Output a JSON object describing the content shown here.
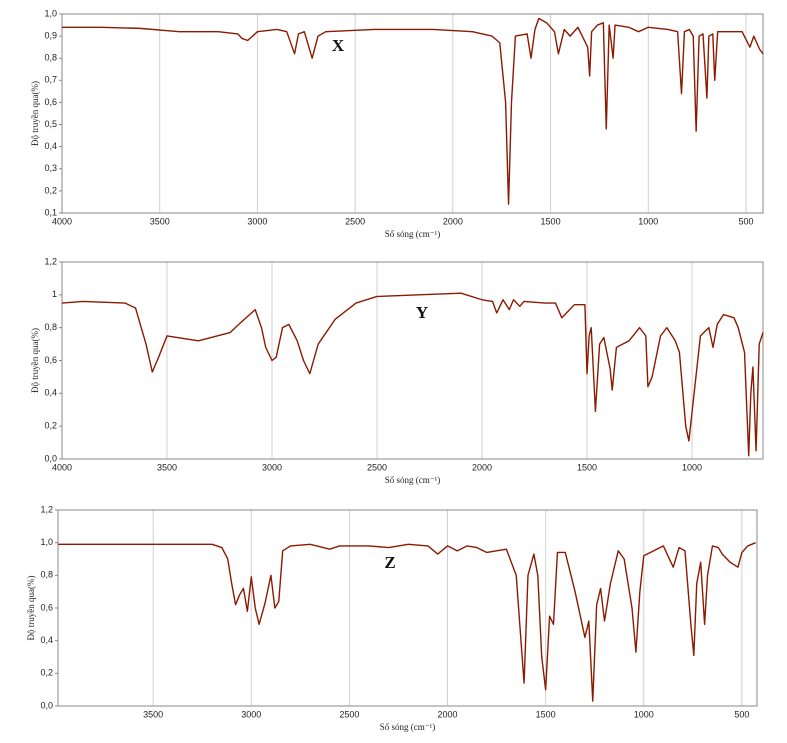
{
  "chart_data": [
    {
      "type": "line",
      "annotation": "X",
      "xlabel": "Số sóng (cm⁻¹)",
      "ylabel": "Độ truyền qua(%)",
      "grid": "x",
      "xlim": [
        4000,
        413
      ],
      "ylim": [
        0.1,
        1.0
      ],
      "xticks": [
        4000,
        3500,
        3000,
        2500,
        2000,
        1500,
        1000,
        500
      ],
      "yticks": [
        {
          "value": 0.1,
          "label": "0,1"
        },
        {
          "value": 0.2,
          "label": "0,2"
        },
        {
          "value": 0.3,
          "label": "0,3"
        },
        {
          "value": 0.4,
          "label": "0,4"
        },
        {
          "value": 0.5,
          "label": "0,5"
        },
        {
          "value": 0.6,
          "label": "0,6"
        },
        {
          "value": 0.7,
          "label": "0,7"
        },
        {
          "value": 0.8,
          "label": "0,8"
        },
        {
          "value": 0.9,
          "label": "0,9"
        },
        {
          "value": 1.0,
          "label": "1,0"
        }
      ],
      "color": "#8b1a00",
      "x": [
        4000,
        3800,
        3600,
        3400,
        3200,
        3100,
        3080,
        3050,
        3000,
        2900,
        2850,
        2810,
        2790,
        2760,
        2720,
        2690,
        2650,
        2400,
        2300,
        2100,
        1900,
        1800,
        1760,
        1730,
        1715,
        1700,
        1680,
        1620,
        1600,
        1580,
        1560,
        1520,
        1480,
        1460,
        1430,
        1400,
        1360,
        1310,
        1300,
        1290,
        1260,
        1230,
        1215,
        1200,
        1180,
        1170,
        1100,
        1050,
        1000,
        900,
        850,
        830,
        815,
        790,
        770,
        755,
        740,
        720,
        700,
        690,
        670,
        660,
        645,
        600,
        520,
        480,
        460,
        430,
        413
      ],
      "values": [
        0.94,
        0.94,
        0.935,
        0.92,
        0.92,
        0.91,
        0.89,
        0.88,
        0.92,
        0.93,
        0.92,
        0.82,
        0.91,
        0.92,
        0.8,
        0.9,
        0.92,
        0.93,
        0.93,
        0.93,
        0.92,
        0.9,
        0.87,
        0.6,
        0.14,
        0.6,
        0.9,
        0.91,
        0.8,
        0.93,
        0.98,
        0.96,
        0.92,
        0.82,
        0.93,
        0.9,
        0.94,
        0.85,
        0.72,
        0.92,
        0.95,
        0.96,
        0.48,
        0.95,
        0.8,
        0.95,
        0.94,
        0.92,
        0.94,
        0.93,
        0.92,
        0.64,
        0.92,
        0.93,
        0.9,
        0.47,
        0.9,
        0.91,
        0.62,
        0.9,
        0.91,
        0.7,
        0.92,
        0.92,
        0.92,
        0.85,
        0.9,
        0.84,
        0.82
      ]
    },
    {
      "type": "line",
      "annotation": "Y",
      "xlabel": "Số sóng (cm⁻¹)",
      "ylabel": "Độ truyền qua(%)",
      "grid": "x",
      "xlim": [
        4000,
        662
      ],
      "ylim": [
        0,
        1.2
      ],
      "xticks": [
        4000,
        3500,
        3000,
        2500,
        2000,
        1500,
        1000
      ],
      "yticks": [
        {
          "value": 0,
          "label": "0,0"
        },
        {
          "value": 0.2,
          "label": "0,2"
        },
        {
          "value": 0.4,
          "label": "0,4"
        },
        {
          "value": 0.6,
          "label": "0,6"
        },
        {
          "value": 0.8,
          "label": "0,8"
        },
        1,
        {
          "value": 1.2,
          "label": "1,2"
        }
      ],
      "color": "#8b1a00",
      "x": [
        4000,
        3900,
        3700,
        3650,
        3600,
        3570,
        3540,
        3500,
        3450,
        3350,
        3200,
        3150,
        3080,
        3050,
        3030,
        3000,
        2980,
        2950,
        2920,
        2880,
        2850,
        2820,
        2780,
        2700,
        2600,
        2500,
        2300,
        2100,
        2000,
        1950,
        1930,
        1900,
        1870,
        1850,
        1820,
        1800,
        1700,
        1650,
        1620,
        1590,
        1560,
        1510,
        1500,
        1490,
        1480,
        1460,
        1440,
        1420,
        1390,
        1380,
        1360,
        1300,
        1250,
        1220,
        1210,
        1190,
        1150,
        1120,
        1080,
        1060,
        1030,
        1015,
        990,
        960,
        920,
        900,
        880,
        850,
        800,
        780,
        750,
        730,
        720,
        710,
        695,
        680,
        662
      ],
      "values": [
        0.95,
        0.96,
        0.95,
        0.92,
        0.7,
        0.53,
        0.62,
        0.75,
        0.74,
        0.72,
        0.77,
        0.83,
        0.91,
        0.8,
        0.68,
        0.6,
        0.62,
        0.8,
        0.82,
        0.72,
        0.6,
        0.52,
        0.7,
        0.85,
        0.95,
        0.99,
        1.0,
        1.01,
        0.97,
        0.96,
        0.89,
        0.97,
        0.91,
        0.97,
        0.93,
        0.96,
        0.95,
        0.95,
        0.86,
        0.9,
        0.94,
        0.94,
        0.52,
        0.75,
        0.8,
        0.29,
        0.7,
        0.74,
        0.55,
        0.42,
        0.68,
        0.72,
        0.8,
        0.75,
        0.44,
        0.5,
        0.75,
        0.8,
        0.72,
        0.65,
        0.2,
        0.11,
        0.4,
        0.75,
        0.8,
        0.68,
        0.82,
        0.88,
        0.86,
        0.8,
        0.65,
        0.02,
        0.4,
        0.56,
        0.05,
        0.7,
        0.77
      ]
    },
    {
      "type": "line",
      "annotation": "Z",
      "xlabel": "Số sóng (cm⁻¹)",
      "ylabel": "Độ truyền qua(%)",
      "grid": "x",
      "xlim": [
        3985,
        423
      ],
      "ylim": [
        0,
        1.2
      ],
      "xticks": [
        3500,
        3000,
        2500,
        2000,
        1500,
        1000,
        500
      ],
      "yticks": [
        {
          "value": 0,
          "label": "0,0"
        },
        {
          "value": 0.2,
          "label": "0,2"
        },
        {
          "value": 0.4,
          "label": "0,4"
        },
        {
          "value": 0.6,
          "label": "0,6"
        },
        {
          "value": 0.8,
          "label": "0,8"
        },
        {
          "value": 1.0,
          "label": "1,0"
        },
        {
          "value": 1.2,
          "label": "1,2"
        }
      ],
      "color": "#8b1a00",
      "x": [
        3985,
        3500,
        3200,
        3150,
        3120,
        3100,
        3080,
        3060,
        3040,
        3020,
        3000,
        2980,
        2960,
        2930,
        2900,
        2880,
        2860,
        2840,
        2800,
        2700,
        2600,
        2550,
        2400,
        2300,
        2200,
        2100,
        2050,
        2000,
        1950,
        1900,
        1850,
        1800,
        1700,
        1650,
        1610,
        1590,
        1560,
        1540,
        1520,
        1500,
        1480,
        1460,
        1440,
        1400,
        1350,
        1300,
        1280,
        1260,
        1240,
        1220,
        1200,
        1170,
        1130,
        1100,
        1060,
        1040,
        1020,
        1000,
        950,
        900,
        850,
        820,
        790,
        760,
        745,
        730,
        710,
        690,
        675,
        650,
        620,
        600,
        560,
        520,
        500,
        470,
        430
      ],
      "values": [
        0.99,
        0.99,
        0.99,
        0.97,
        0.9,
        0.75,
        0.62,
        0.68,
        0.72,
        0.58,
        0.79,
        0.6,
        0.5,
        0.63,
        0.8,
        0.6,
        0.64,
        0.95,
        0.98,
        0.99,
        0.96,
        0.98,
        0.98,
        0.97,
        0.99,
        0.98,
        0.93,
        0.98,
        0.95,
        0.98,
        0.97,
        0.94,
        0.96,
        0.8,
        0.14,
        0.8,
        0.93,
        0.8,
        0.3,
        0.1,
        0.55,
        0.5,
        0.94,
        0.94,
        0.7,
        0.42,
        0.52,
        0.03,
        0.62,
        0.72,
        0.52,
        0.75,
        0.95,
        0.9,
        0.6,
        0.33,
        0.7,
        0.92,
        0.95,
        0.98,
        0.85,
        0.97,
        0.95,
        0.5,
        0.31,
        0.75,
        0.88,
        0.5,
        0.8,
        0.98,
        0.97,
        0.93,
        0.88,
        0.85,
        0.94,
        0.98,
        1.0
      ]
    }
  ]
}
